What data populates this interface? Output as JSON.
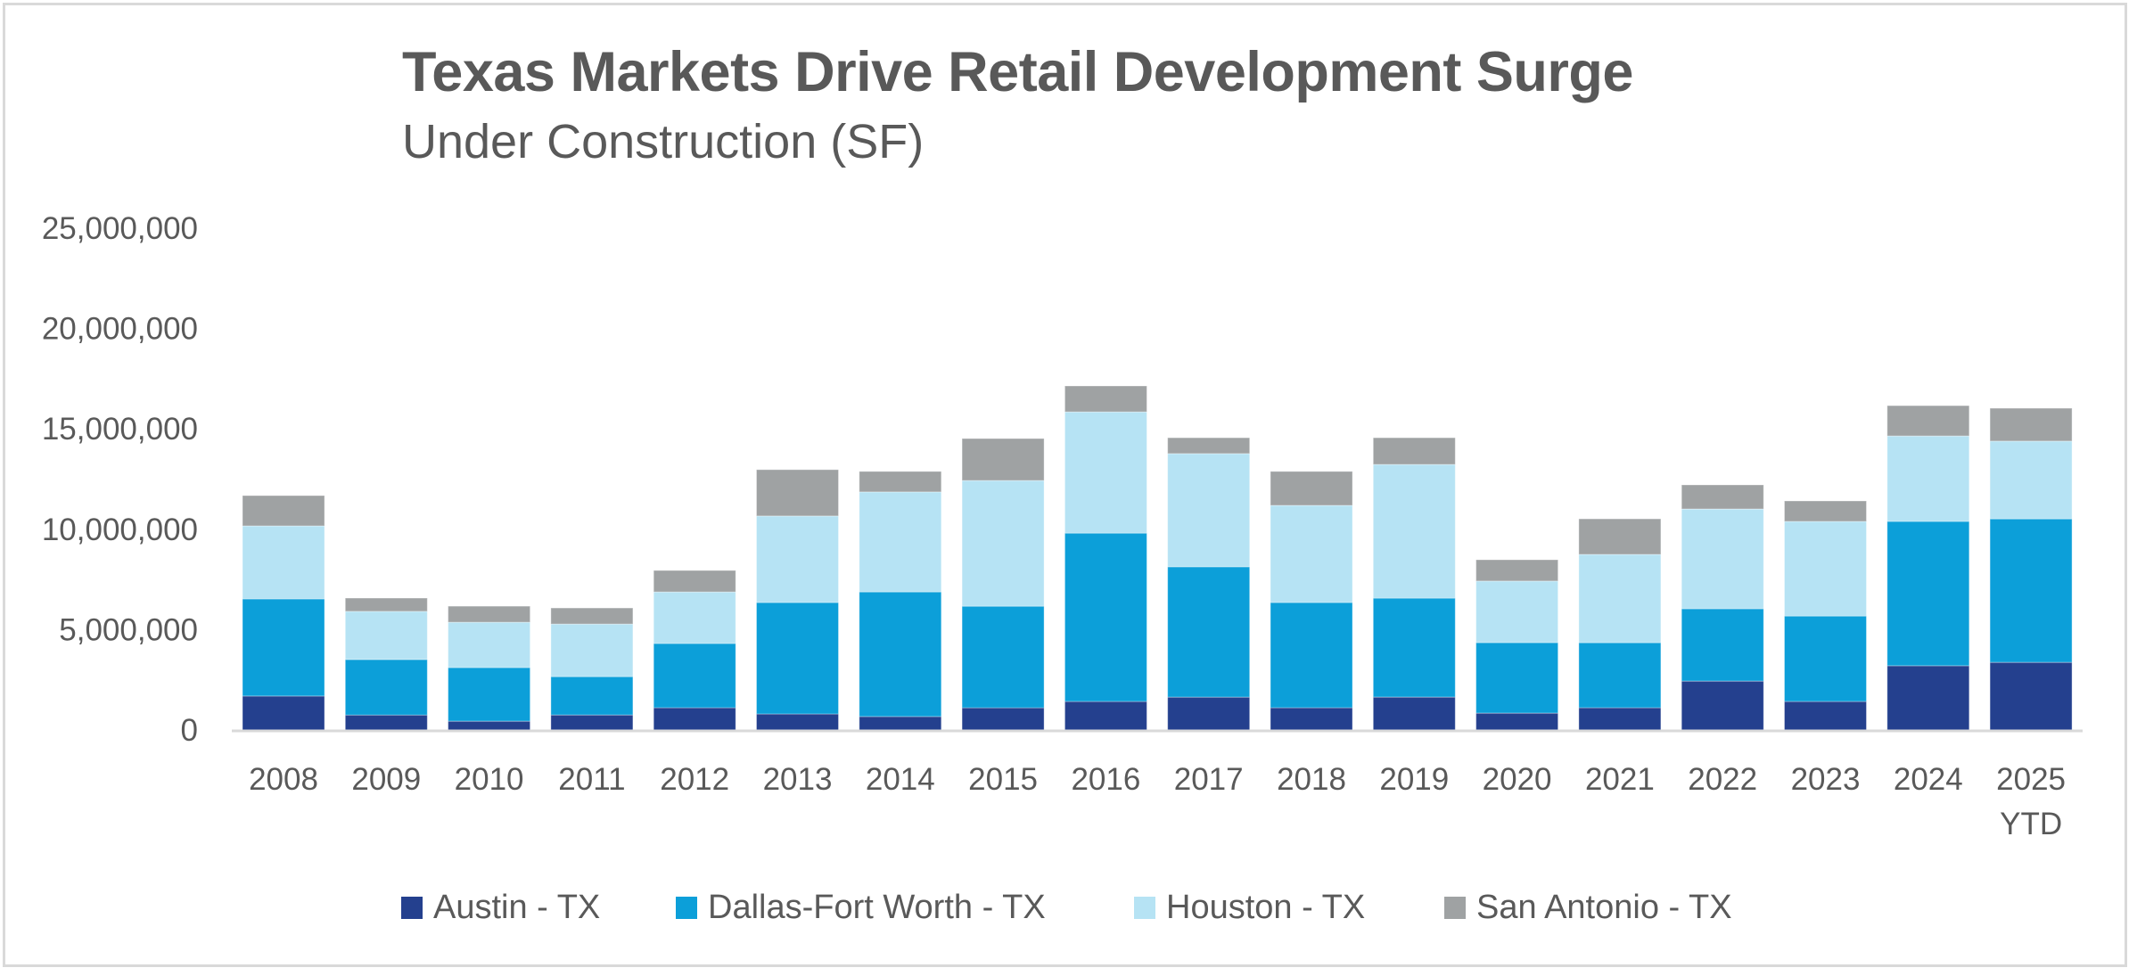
{
  "chart_data": {
    "type": "bar",
    "stacked": true,
    "title": "Texas Markets Drive Retail Development Surge",
    "subtitle": "Under Construction (SF)",
    "xlabel": "",
    "ylabel": "",
    "ylim": [
      0,
      25000000
    ],
    "yticks": [
      0,
      5000000,
      10000000,
      15000000,
      20000000,
      25000000
    ],
    "ytick_labels": [
      "0",
      "5,000,000",
      "10,000,000",
      "15,000,000",
      "20,000,000",
      "25,000,000"
    ],
    "grid": false,
    "legend_position": "bottom",
    "categories": [
      "2008",
      "2009",
      "2010",
      "2011",
      "2012",
      "2013",
      "2014",
      "2015",
      "2016",
      "2017",
      "2018",
      "2019",
      "2020",
      "2021",
      "2022",
      "2023",
      "2024",
      "2025 YTD"
    ],
    "category_labels": [
      [
        "2008"
      ],
      [
        "2009"
      ],
      [
        "2010"
      ],
      [
        "2011"
      ],
      [
        "2012"
      ],
      [
        "2013"
      ],
      [
        "2014"
      ],
      [
        "2015"
      ],
      [
        "2016"
      ],
      [
        "2017"
      ],
      [
        "2018"
      ],
      [
        "2019"
      ],
      [
        "2020"
      ],
      [
        "2021"
      ],
      [
        "2022"
      ],
      [
        "2023"
      ],
      [
        "2024"
      ],
      [
        "2025",
        "YTD"
      ]
    ],
    "series": [
      {
        "name": "Austin - TX",
        "color": "#24408e",
        "values": [
          1690000,
          750000,
          440000,
          750000,
          1110000,
          800000,
          670000,
          1110000,
          1420000,
          1640000,
          1110000,
          1640000,
          840000,
          1110000,
          2440000,
          1420000,
          3200000,
          3370000
        ]
      },
      {
        "name": "Dallas-Fort Worth - TX",
        "color": "#0c9fd9",
        "values": [
          4840000,
          2760000,
          2670000,
          1910000,
          3200000,
          5550000,
          6210000,
          5060000,
          8390000,
          6490000,
          5240000,
          4930000,
          3510000,
          3240000,
          3600000,
          4260000,
          7190000,
          7150000
        ]
      },
      {
        "name": "Houston - TX",
        "color": "#b6e3f4",
        "values": [
          3640000,
          2400000,
          2260000,
          2620000,
          2570000,
          4310000,
          4980000,
          6260000,
          6040000,
          5640000,
          4840000,
          6660000,
          3070000,
          4400000,
          4970000,
          4710000,
          4260000,
          3870000
        ]
      },
      {
        "name": "San Antonio - TX",
        "color": "#9fa2a3",
        "values": [
          1510000,
          660000,
          800000,
          800000,
          1070000,
          2310000,
          1020000,
          2090000,
          1290000,
          790000,
          1690000,
          1330000,
          1060000,
          1770000,
          1200000,
          1020000,
          1510000,
          1640000
        ]
      }
    ]
  },
  "colors": {
    "text": "#595959",
    "axis": "#d9d9d9",
    "frame": "#d9d9d9"
  }
}
